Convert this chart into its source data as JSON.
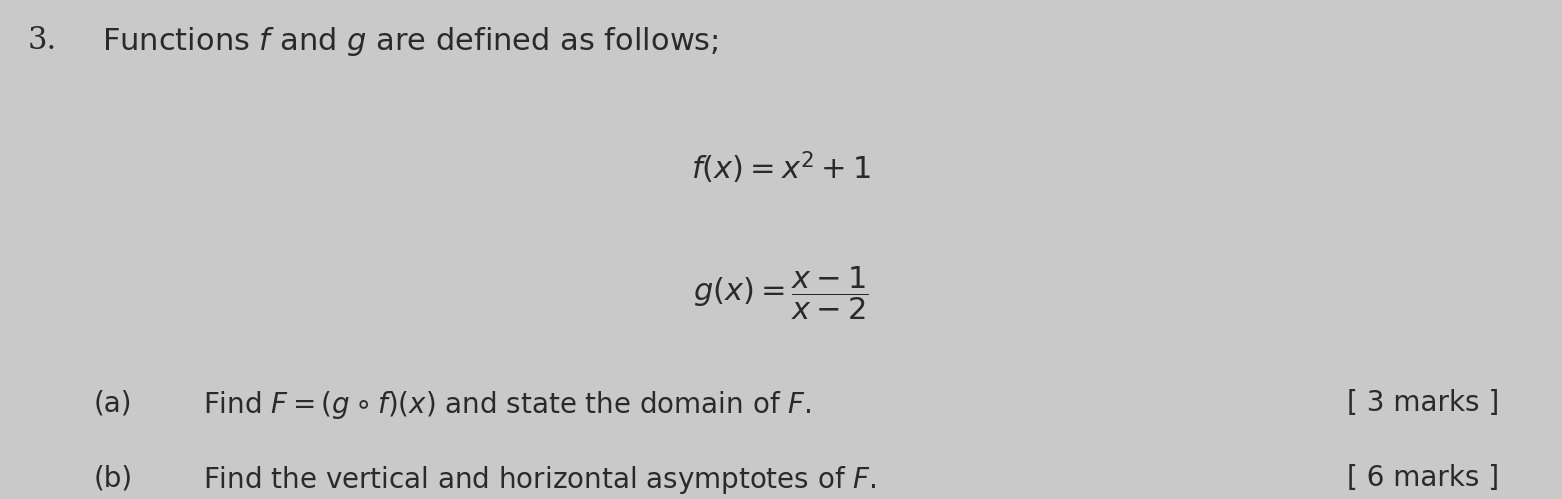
{
  "background_color": "#c9c9c9",
  "question_number": "3.",
  "header_text": "Functions $f$ and $g$ are defined as follows;",
  "formula_f": "$f(x) = x^2 + 1$",
  "formula_g": "$g(x) = \\dfrac{x-1}{x-2}$",
  "part_a_label": "(a)",
  "part_a_text": "Find $F = (g \\circ f)(x)$ and state the domain of $F$.",
  "part_a_marks": "[ 3 marks ]",
  "part_b_label": "(b)",
  "part_b_text": "Find the vertical and horizontal asymptotes of $F$.",
  "part_b_marks": "[ 6 marks ]",
  "text_color": "#2a2a2a",
  "fontsize_header": 22,
  "fontsize_formula": 22,
  "fontsize_parts": 20,
  "fontsize_marks": 20,
  "fontsize_number": 22,
  "fig_width": 15.62,
  "fig_height": 4.99,
  "dpi": 100
}
